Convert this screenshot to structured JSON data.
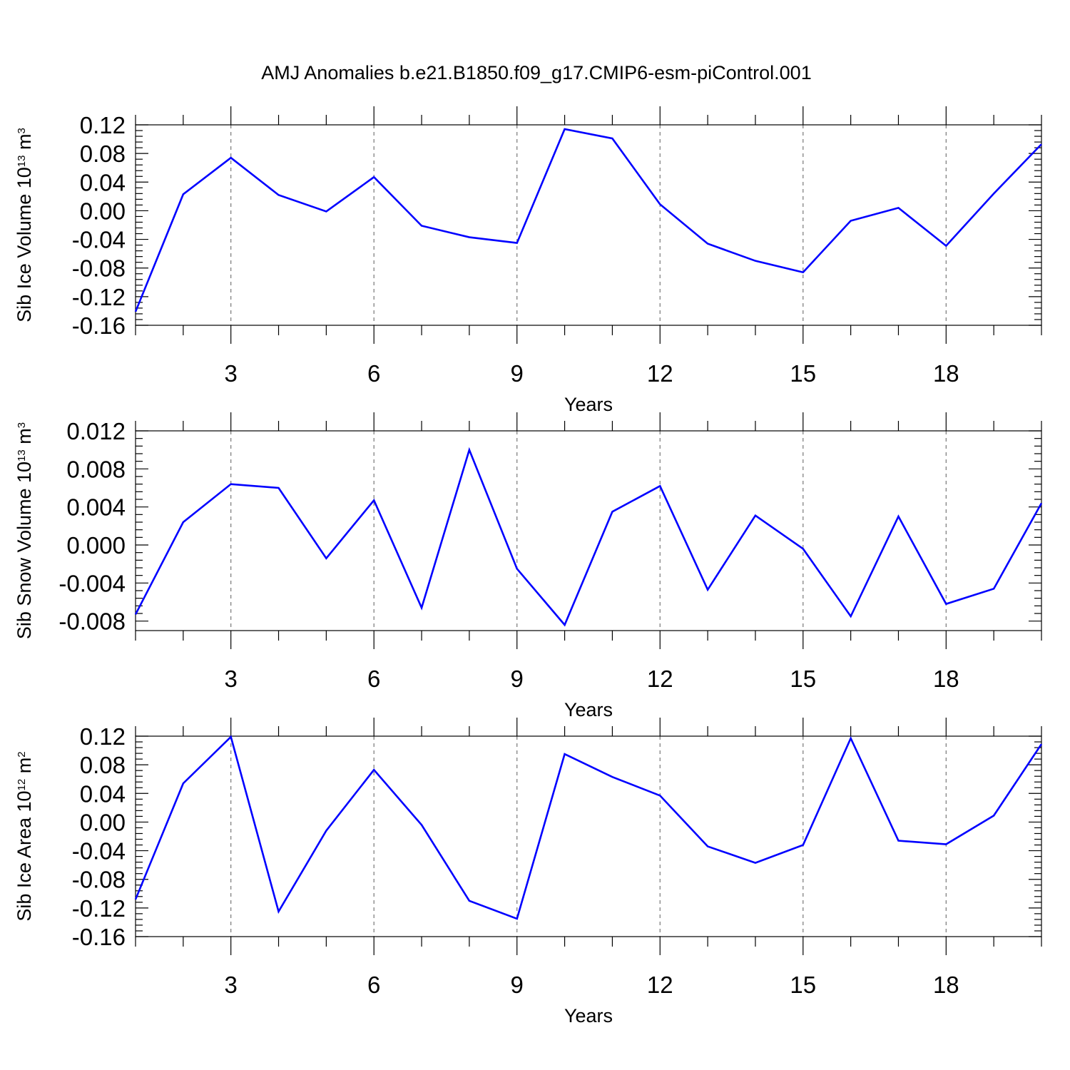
{
  "chart_data": [
    {
      "type": "line",
      "title": "AMJ Anomalies b.e21.B1850.f09_g17.CMIP6-esm-piControl.001",
      "xlabel": "Years",
      "ylabel": "Sib Ice Volume 10",
      "ylabel_sup": "13",
      "ylabel_unit": " m",
      "ylabel_unit_sup": "3",
      "xlim": [
        1,
        20
      ],
      "ylim": [
        -0.16,
        0.12
      ],
      "x_ticks": [
        "3",
        "6",
        "9",
        "12",
        "15",
        "18"
      ],
      "y_ticks": [
        "0.12",
        "0.08",
        "0.04",
        "0.00",
        "-0.04",
        "-0.08",
        "-0.12",
        "-0.16"
      ],
      "grid": "vertical dashed at major x ticks",
      "color": "#0000ff",
      "series": [
        {
          "x": [
            1,
            2,
            3,
            4,
            5,
            6,
            7,
            8,
            9,
            10,
            11,
            12,
            13,
            14,
            15,
            16,
            17,
            18,
            19,
            20
          ],
          "values": [
            -0.141,
            0.023,
            0.074,
            0.022,
            -0.001,
            0.047,
            -0.021,
            -0.037,
            -0.045,
            0.114,
            0.101,
            0.009,
            -0.046,
            -0.07,
            -0.086,
            -0.014,
            0.004,
            -0.049,
            0.024,
            0.093
          ]
        }
      ]
    },
    {
      "type": "line",
      "xlabel": "Years",
      "ylabel": "Sib Snow Volume 10",
      "ylabel_sup": "13",
      "ylabel_unit": " m",
      "ylabel_unit_sup": "3",
      "xlim": [
        1,
        20
      ],
      "ylim": [
        -0.009,
        0.012
      ],
      "x_ticks": [
        "3",
        "6",
        "9",
        "12",
        "15",
        "18"
      ],
      "y_ticks": [
        "0.012",
        "0.008",
        "0.004",
        "0.000",
        "-0.004",
        "-0.008"
      ],
      "grid": "vertical dashed at major x ticks",
      "color": "#0000ff",
      "series": [
        {
          "x": [
            1,
            2,
            3,
            4,
            5,
            6,
            7,
            8,
            9,
            10,
            11,
            12,
            13,
            14,
            15,
            16,
            17,
            18,
            19,
            20
          ],
          "values": [
            -0.0073,
            0.0024,
            0.0064,
            0.006,
            -0.0014,
            0.0047,
            -0.0066,
            0.01,
            -0.0025,
            -0.0084,
            0.0035,
            0.0062,
            -0.0047,
            0.0031,
            -0.0004,
            -0.0075,
            0.003,
            -0.0062,
            -0.0046,
            0.0044
          ]
        }
      ]
    },
    {
      "type": "line",
      "xlabel": "Years",
      "ylabel": "Sib Ice Area 10",
      "ylabel_sup": "12",
      "ylabel_unit": " m",
      "ylabel_unit_sup": "2",
      "xlim": [
        1,
        20
      ],
      "ylim": [
        -0.16,
        0.12
      ],
      "x_ticks": [
        "3",
        "6",
        "9",
        "12",
        "15",
        "18"
      ],
      "y_ticks": [
        "0.12",
        "0.08",
        "0.04",
        "0.00",
        "-0.04",
        "-0.08",
        "-0.12",
        "-0.16"
      ],
      "grid": "vertical dashed at major x ticks",
      "color": "#0000ff",
      "series": [
        {
          "x": [
            1,
            2,
            3,
            4,
            5,
            6,
            7,
            8,
            9,
            10,
            11,
            12,
            13,
            14,
            15,
            16,
            17,
            18,
            19,
            20
          ],
          "values": [
            -0.108,
            0.054,
            0.119,
            -0.125,
            -0.012,
            0.073,
            -0.004,
            -0.11,
            -0.135,
            0.095,
            0.063,
            0.037,
            -0.034,
            -0.057,
            -0.032,
            0.117,
            -0.026,
            -0.031,
            0.009,
            0.109
          ]
        }
      ]
    }
  ]
}
